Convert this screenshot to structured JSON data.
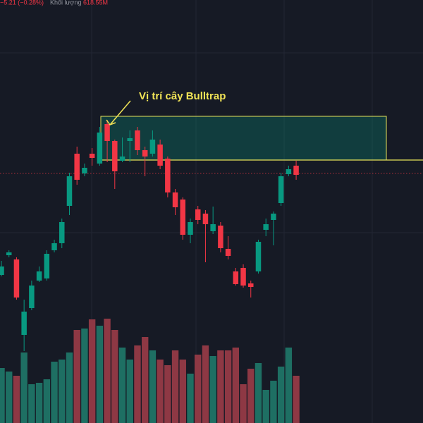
{
  "chart_data": {
    "type": "candlestick",
    "header": {
      "change": "−5.21 (−0.28%)",
      "volume_label": "Khối lượng",
      "volume_value": "618.55M"
    },
    "annotation": "Vị trí cây Bulltrap",
    "ylim": [
      0,
      600
    ],
    "volume_ylim": [
      0,
      600
    ],
    "up_color": "#089981",
    "down_color": "#f23645",
    "volume_up_color": "#1e6f63",
    "volume_down_color": "#8e3844",
    "open": [
      210,
      238,
      232,
      125,
      163,
      202,
      205,
      245,
      255,
      308,
      382,
      354,
      382,
      368,
      424,
      400,
      372,
      400,
      415,
      387,
      382,
      395,
      375,
      327,
      317,
      267,
      303,
      297,
      272,
      280,
      247,
      215,
      220,
      198,
      215,
      274,
      288,
      312,
      353,
      365
    ],
    "high": [
      230,
      245,
      235,
      175,
      202,
      222,
      245,
      260,
      290,
      355,
      392,
      368,
      390,
      420,
      430,
      402,
      405,
      415,
      420,
      392,
      415,
      402,
      378,
      332,
      320,
      290,
      308,
      302,
      307,
      285,
      265,
      220,
      225,
      202,
      260,
      290,
      300,
      355,
      365,
      372
    ],
    "low": [
      208,
      235,
      175,
      102,
      160,
      200,
      202,
      242,
      248,
      295,
      338,
      350,
      365,
      365,
      370,
      332,
      370,
      370,
      380,
      350,
      378,
      360,
      320,
      295,
      260,
      255,
      282,
      228,
      268,
      242,
      232,
      195,
      192,
      178,
      212,
      265,
      252,
      308,
      350,
      345
    ],
    "close": [
      222,
      242,
      178,
      158,
      195,
      215,
      240,
      255,
      285,
      350,
      345,
      362,
      376,
      412,
      400,
      357,
      378,
      404,
      387,
      378,
      402,
      365,
      327,
      306,
      267,
      285,
      288,
      282,
      282,
      248,
      237,
      197,
      195,
      193,
      257,
      282,
      297,
      350,
      360,
      352
    ],
    "volume": [
      78,
      73,
      67,
      100,
      55,
      57,
      62,
      87,
      90,
      100,
      132,
      134,
      147,
      138,
      148,
      132,
      107,
      90,
      110,
      122,
      103,
      90,
      82,
      103,
      90,
      70,
      97,
      110,
      95,
      103,
      103,
      107,
      55,
      77,
      85,
      47,
      60,
      80,
      107,
      67
    ]
  }
}
